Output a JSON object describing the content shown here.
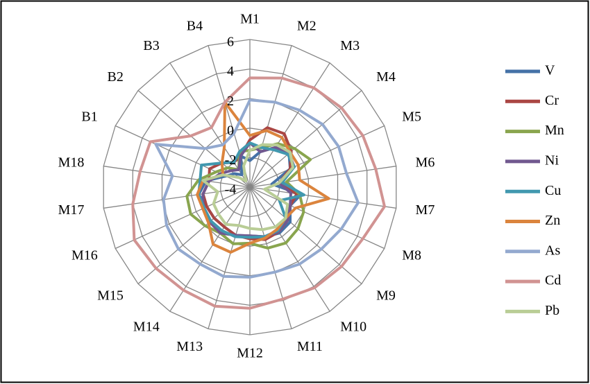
{
  "chart_data": {
    "type": "radar",
    "categories": [
      "M1",
      "M2",
      "M3",
      "M4",
      "M5",
      "M6",
      "M7",
      "M8",
      "M9",
      "M10",
      "M11",
      "M12",
      "M13",
      "M14",
      "M15",
      "M16",
      "M17",
      "M18",
      "B1",
      "B2",
      "B3",
      "B4"
    ],
    "ylim": [
      -4,
      6
    ],
    "yticks": [
      -4,
      -2,
      0,
      2,
      4,
      6
    ],
    "grid": true,
    "legend": "right",
    "series": [
      {
        "name": "V",
        "color": "#4572a7",
        "values": [
          -2.2,
          -1.5,
          -0.8,
          -0.5,
          -1.0,
          -2.5,
          -0.5,
          -1.0,
          -0.4,
          -0.3,
          -0.5,
          -0.7,
          -0.6,
          -0.8,
          -0.8,
          -0.8,
          -0.5,
          -1.0,
          -2.2,
          -2.6,
          -3.0,
          -1.8
        ]
      },
      {
        "name": "Cr",
        "color": "#aa4643",
        "values": [
          -0.8,
          0.2,
          0.3,
          -0.3,
          -1.0,
          -2.0,
          -0.8,
          -1.0,
          -0.6,
          -0.4,
          -0.3,
          -0.5,
          -0.6,
          -0.8,
          -0.8,
          -0.8,
          -0.8,
          -1.2,
          -1.0,
          -1.5,
          -2.0,
          -1.8
        ]
      },
      {
        "name": "Mn",
        "color": "#89a54e",
        "values": [
          -1.5,
          -1.2,
          -0.5,
          0.0,
          0.5,
          -1.5,
          -0.6,
          0.0,
          0.3,
          0.5,
          0.3,
          -0.2,
          0.0,
          -0.3,
          0.0,
          0.4,
          0.3,
          -0.5,
          -1.5,
          -2.0,
          -2.6,
          -1.5
        ]
      },
      {
        "name": "Ni",
        "color": "#71588f",
        "values": [
          -1.0,
          -1.5,
          -0.8,
          -0.5,
          -0.7,
          -2.0,
          -1.2,
          -1.0,
          -0.6,
          -0.4,
          -0.5,
          -0.7,
          -0.6,
          -0.3,
          -0.4,
          -0.5,
          -0.8,
          -1.2,
          -1.8,
          -2.3,
          -2.6,
          -1.8
        ]
      },
      {
        "name": "Cu",
        "color": "#4198af",
        "values": [
          -1.0,
          -1.2,
          -1.0,
          -0.6,
          -0.7,
          -1.8,
          -0.3,
          -1.8,
          -0.8,
          -0.5,
          -0.5,
          -0.6,
          -0.5,
          -0.5,
          -0.5,
          -0.6,
          -0.5,
          -0.6,
          -0.4,
          -1.5,
          -2.0,
          -1.5
        ]
      },
      {
        "name": "Zn",
        "color": "#db843d",
        "values": [
          -0.5,
          0.0,
          0.0,
          -0.4,
          -0.4,
          -0.6,
          1.4,
          -0.6,
          -0.8,
          -0.6,
          -0.4,
          -0.2,
          0.6,
          0.6,
          -0.3,
          -0.5,
          -0.4,
          -0.8,
          -2.0,
          -1.5,
          -0.8,
          2.0
        ]
      },
      {
        "name": "As",
        "color": "#93a9cf",
        "values": [
          1.9,
          2.0,
          2.2,
          2.5,
          2.6,
          2.6,
          3.4,
          2.8,
          2.4,
          2.2,
          2.0,
          2.1,
          2.3,
          2.2,
          2.4,
          2.2,
          1.9,
          1.3,
          3.0,
          0.0,
          -0.6,
          -0.2
        ]
      },
      {
        "name": "Cd",
        "color": "#d19392",
        "values": [
          3.4,
          3.7,
          4.0,
          4.2,
          4.4,
          4.6,
          5.2,
          4.4,
          4.2,
          4.1,
          3.9,
          4.2,
          4.4,
          4.3,
          4.4,
          4.6,
          4.0,
          3.5,
          3.4,
          1.3,
          0.8,
          2.0
        ]
      },
      {
        "name": "Pb",
        "color": "#b9cd96",
        "values": [
          -1.5,
          -1.0,
          -0.6,
          -0.4,
          -0.8,
          -2.0,
          -3.0,
          -1.2,
          -0.8,
          -0.8,
          -1.0,
          -1.2,
          -1.3,
          -1.0,
          -1.2,
          -1.3,
          -1.8,
          -0.8,
          -2.0,
          -3.0,
          -3.5,
          -2.5
        ]
      }
    ]
  }
}
